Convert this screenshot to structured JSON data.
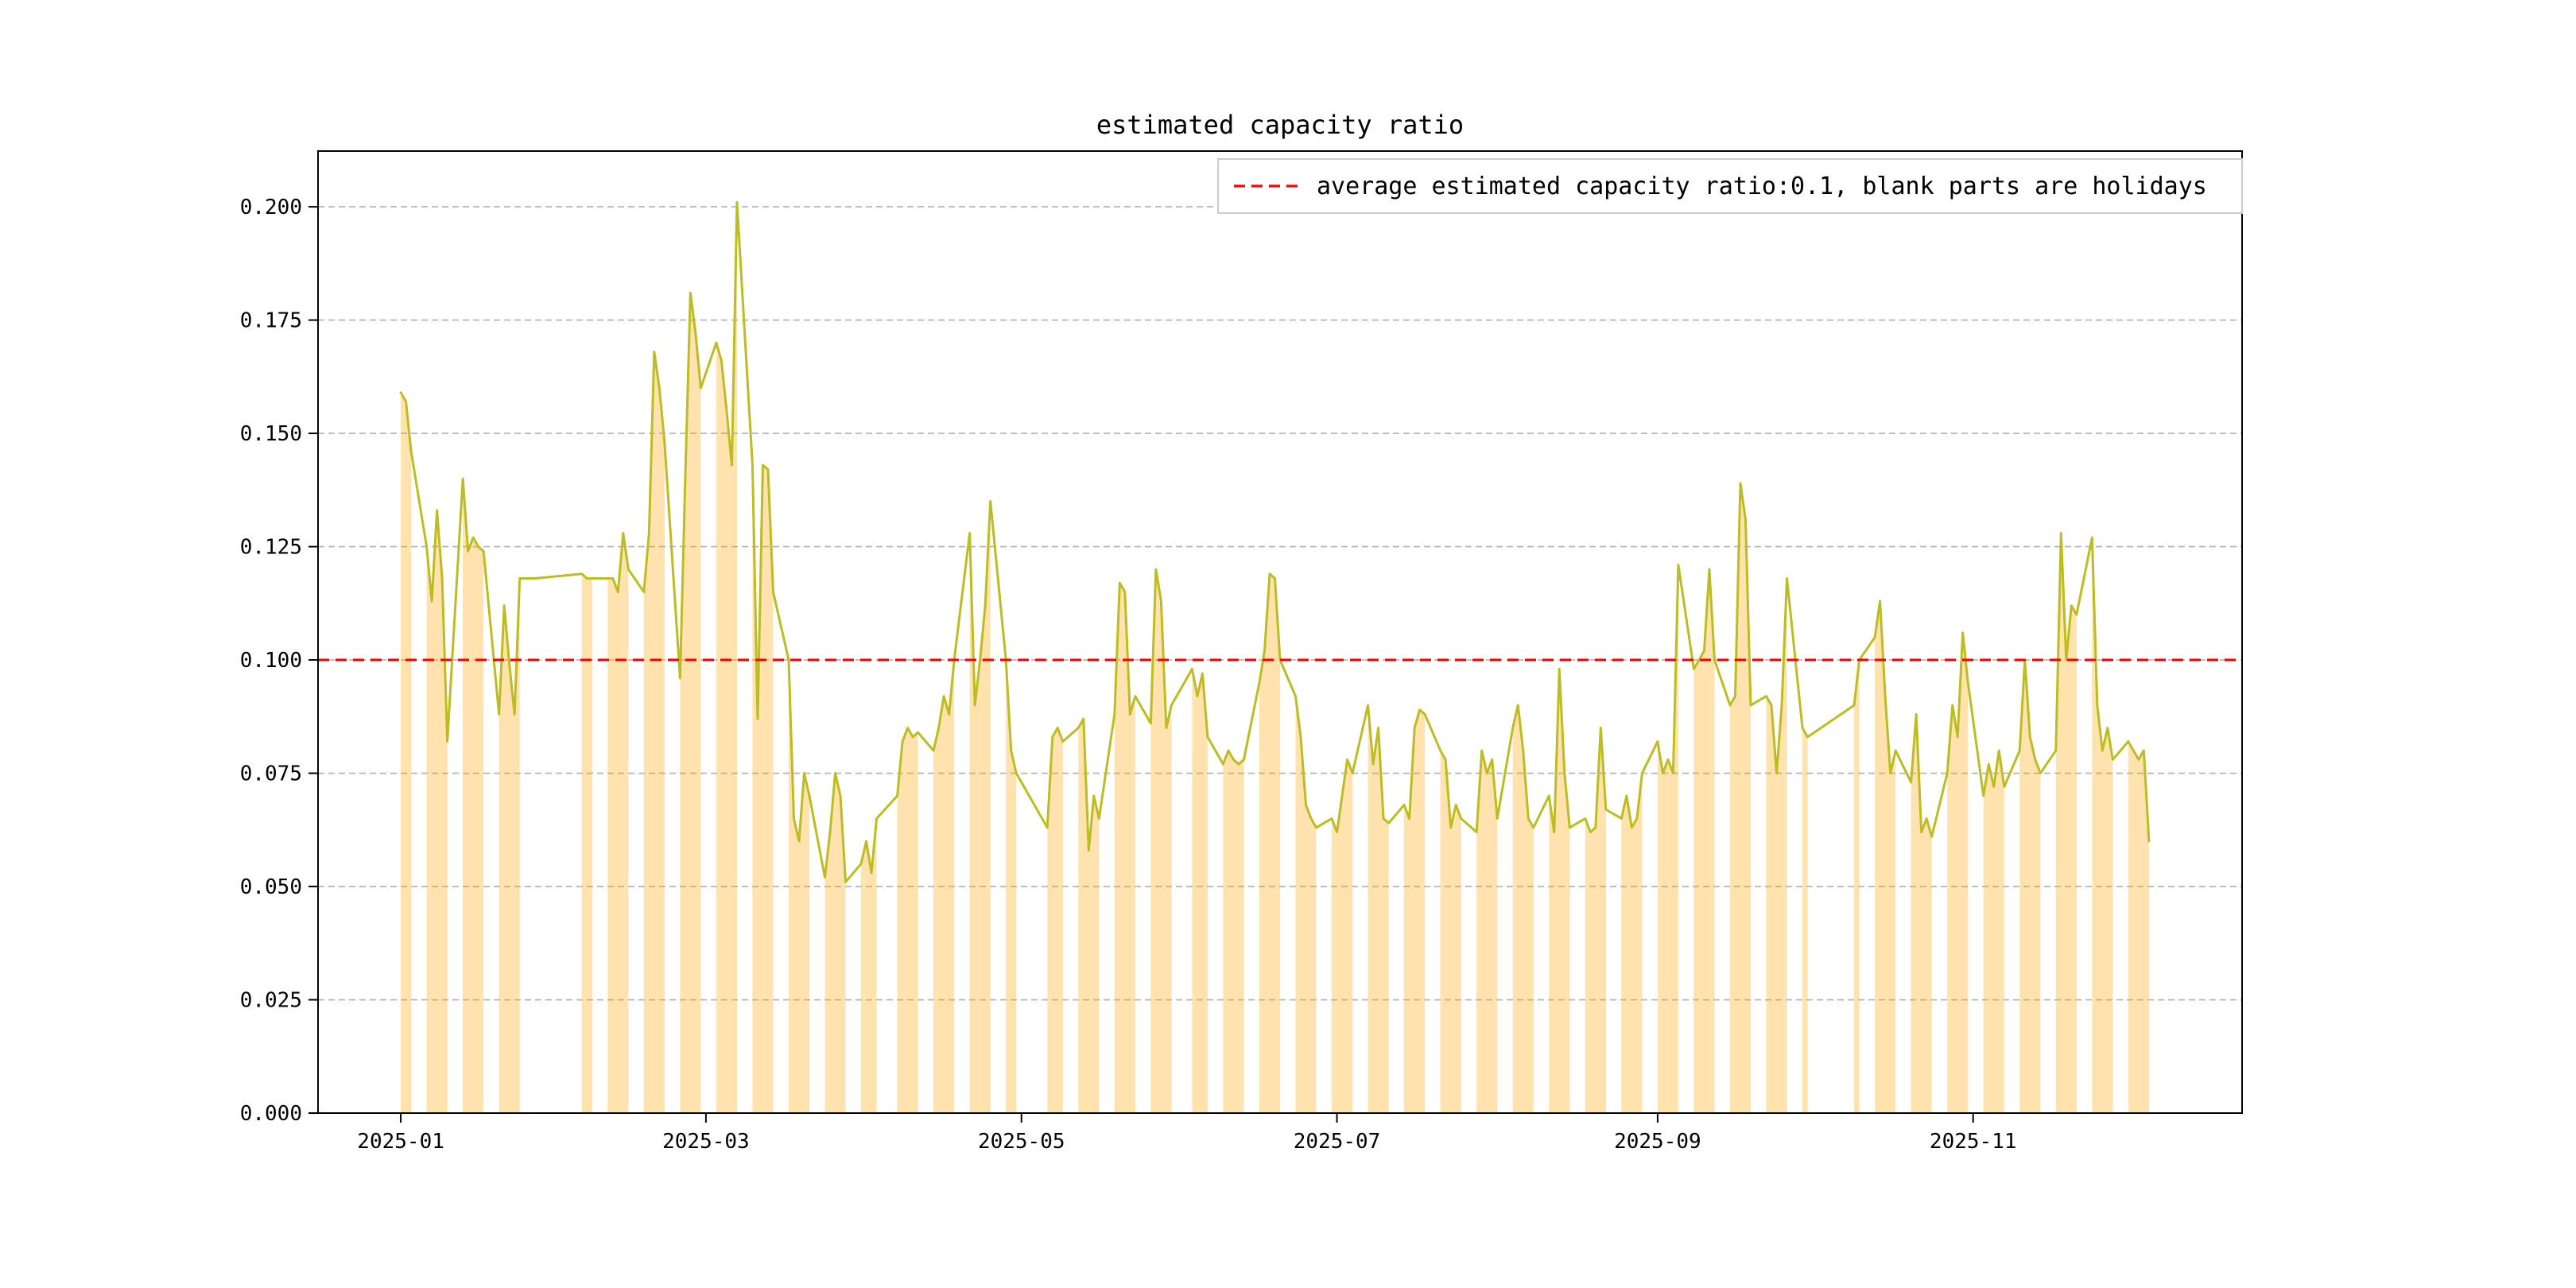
{
  "chart_data": {
    "type": "line",
    "title": "estimated capacity ratio",
    "legend": {
      "label": "average estimated capacity ratio:0.1, blank parts are holidays",
      "position": "upper right"
    },
    "average_line": {
      "value": 0.1,
      "color": "#ff0000",
      "style": "dashed"
    },
    "grid": true,
    "line_color": "#bcbd22",
    "fill_color": "#ffa500",
    "fill_opacity": 0.32,
    "x_unit": "days since 2025-01-01, workdays only (blank gaps are weekends/holidays)",
    "xlim": [
      -16,
      356
    ],
    "ylim": [
      0,
      0.2123
    ],
    "x_ticks": [
      {
        "d": 0,
        "label": "2025-01"
      },
      {
        "d": 59,
        "label": "2025-03"
      },
      {
        "d": 120,
        "label": "2025-05"
      },
      {
        "d": 181,
        "label": "2025-07"
      },
      {
        "d": 243,
        "label": "2025-09"
      },
      {
        "d": 304,
        "label": "2025-11"
      }
    ],
    "y_ticks": [
      {
        "v": 0,
        "label": "0.000"
      },
      {
        "v": 0.025,
        "label": "0.025"
      },
      {
        "v": 0.05,
        "label": "0.050"
      },
      {
        "v": 0.075,
        "label": "0.075"
      },
      {
        "v": 0.1,
        "label": "0.100"
      },
      {
        "v": 0.125,
        "label": "0.125"
      },
      {
        "v": 0.15,
        "label": "0.150"
      },
      {
        "v": 0.175,
        "label": "0.175"
      },
      {
        "v": 0.2,
        "label": "0.200"
      }
    ],
    "points": [
      [
        0,
        0.159
      ],
      [
        1,
        0.157
      ],
      [
        2,
        0.146
      ],
      [
        5,
        0.125
      ],
      [
        6,
        0.113
      ],
      [
        7,
        0.133
      ],
      [
        8,
        0.118
      ],
      [
        9,
        0.082
      ],
      [
        12,
        0.14
      ],
      [
        13,
        0.124
      ],
      [
        14,
        0.127
      ],
      [
        15,
        0.125
      ],
      [
        16,
        0.124
      ],
      [
        19,
        0.088
      ],
      [
        20,
        0.112
      ],
      [
        21,
        0.099
      ],
      [
        22,
        0.088
      ],
      [
        23,
        0.118
      ],
      [
        26,
        0.118
      ],
      [
        35,
        0.119
      ],
      [
        36,
        0.118
      ],
      [
        37,
        0.118
      ],
      [
        40,
        0.118
      ],
      [
        41,
        0.118
      ],
      [
        42,
        0.115
      ],
      [
        43,
        0.128
      ],
      [
        44,
        0.12
      ],
      [
        47,
        0.115
      ],
      [
        48,
        0.128
      ],
      [
        49,
        0.168
      ],
      [
        50,
        0.16
      ],
      [
        51,
        0.148
      ],
      [
        54,
        0.096
      ],
      [
        55,
        0.14
      ],
      [
        56,
        0.181
      ],
      [
        57,
        0.172
      ],
      [
        58,
        0.16
      ],
      [
        61,
        0.17
      ],
      [
        62,
        0.166
      ],
      [
        63,
        0.155
      ],
      [
        64,
        0.143
      ],
      [
        65,
        0.201
      ],
      [
        68,
        0.143
      ],
      [
        69,
        0.087
      ],
      [
        70,
        0.143
      ],
      [
        71,
        0.142
      ],
      [
        72,
        0.115
      ],
      [
        75,
        0.1
      ],
      [
        76,
        0.065
      ],
      [
        77,
        0.06
      ],
      [
        78,
        0.075
      ],
      [
        79,
        0.07
      ],
      [
        82,
        0.052
      ],
      [
        83,
        0.062
      ],
      [
        84,
        0.075
      ],
      [
        85,
        0.07
      ],
      [
        86,
        0.051
      ],
      [
        89,
        0.055
      ],
      [
        90,
        0.06
      ],
      [
        91,
        0.053
      ],
      [
        92,
        0.065
      ],
      [
        96,
        0.07
      ],
      [
        97,
        0.082
      ],
      [
        98,
        0.085
      ],
      [
        99,
        0.083
      ],
      [
        100,
        0.084
      ],
      [
        103,
        0.08
      ],
      [
        104,
        0.085
      ],
      [
        105,
        0.092
      ],
      [
        106,
        0.088
      ],
      [
        107,
        0.1
      ],
      [
        110,
        0.128
      ],
      [
        111,
        0.09
      ],
      [
        112,
        0.1
      ],
      [
        113,
        0.112
      ],
      [
        114,
        0.135
      ],
      [
        117,
        0.1
      ],
      [
        118,
        0.08
      ],
      [
        119,
        0.075
      ],
      [
        125,
        0.063
      ],
      [
        126,
        0.083
      ],
      [
        127,
        0.085
      ],
      [
        128,
        0.082
      ],
      [
        131,
        0.085
      ],
      [
        132,
        0.087
      ],
      [
        133,
        0.058
      ],
      [
        134,
        0.07
      ],
      [
        135,
        0.065
      ],
      [
        138,
        0.088
      ],
      [
        139,
        0.117
      ],
      [
        140,
        0.115
      ],
      [
        141,
        0.088
      ],
      [
        142,
        0.092
      ],
      [
        145,
        0.086
      ],
      [
        146,
        0.12
      ],
      [
        147,
        0.113
      ],
      [
        148,
        0.085
      ],
      [
        149,
        0.09
      ],
      [
        153,
        0.098
      ],
      [
        154,
        0.092
      ],
      [
        155,
        0.097
      ],
      [
        156,
        0.083
      ],
      [
        159,
        0.077
      ],
      [
        160,
        0.08
      ],
      [
        161,
        0.078
      ],
      [
        162,
        0.077
      ],
      [
        163,
        0.078
      ],
      [
        166,
        0.095
      ],
      [
        167,
        0.102
      ],
      [
        168,
        0.119
      ],
      [
        169,
        0.118
      ],
      [
        170,
        0.1
      ],
      [
        173,
        0.092
      ],
      [
        174,
        0.083
      ],
      [
        175,
        0.068
      ],
      [
        176,
        0.065
      ],
      [
        177,
        0.063
      ],
      [
        180,
        0.065
      ],
      [
        181,
        0.062
      ],
      [
        182,
        0.07
      ],
      [
        183,
        0.078
      ],
      [
        184,
        0.075
      ],
      [
        187,
        0.09
      ],
      [
        188,
        0.077
      ],
      [
        189,
        0.085
      ],
      [
        190,
        0.065
      ],
      [
        191,
        0.064
      ],
      [
        194,
        0.068
      ],
      [
        195,
        0.065
      ],
      [
        196,
        0.085
      ],
      [
        197,
        0.089
      ],
      [
        198,
        0.088
      ],
      [
        201,
        0.08
      ],
      [
        202,
        0.078
      ],
      [
        203,
        0.063
      ],
      [
        204,
        0.068
      ],
      [
        205,
        0.065
      ],
      [
        208,
        0.062
      ],
      [
        209,
        0.08
      ],
      [
        210,
        0.075
      ],
      [
        211,
        0.078
      ],
      [
        212,
        0.065
      ],
      [
        215,
        0.085
      ],
      [
        216,
        0.09
      ],
      [
        217,
        0.08
      ],
      [
        218,
        0.065
      ],
      [
        219,
        0.063
      ],
      [
        222,
        0.07
      ],
      [
        223,
        0.062
      ],
      [
        224,
        0.098
      ],
      [
        225,
        0.075
      ],
      [
        226,
        0.063
      ],
      [
        229,
        0.065
      ],
      [
        230,
        0.062
      ],
      [
        231,
        0.063
      ],
      [
        232,
        0.085
      ],
      [
        233,
        0.067
      ],
      [
        236,
        0.065
      ],
      [
        237,
        0.07
      ],
      [
        238,
        0.063
      ],
      [
        239,
        0.065
      ],
      [
        240,
        0.075
      ],
      [
        243,
        0.082
      ],
      [
        244,
        0.075
      ],
      [
        245,
        0.078
      ],
      [
        246,
        0.075
      ],
      [
        247,
        0.121
      ],
      [
        250,
        0.098
      ],
      [
        251,
        0.1
      ],
      [
        252,
        0.102
      ],
      [
        253,
        0.12
      ],
      [
        254,
        0.1
      ],
      [
        257,
        0.09
      ],
      [
        258,
        0.092
      ],
      [
        259,
        0.139
      ],
      [
        260,
        0.131
      ],
      [
        261,
        0.09
      ],
      [
        264,
        0.092
      ],
      [
        265,
        0.09
      ],
      [
        266,
        0.075
      ],
      [
        267,
        0.09
      ],
      [
        268,
        0.118
      ],
      [
        271,
        0.085
      ],
      [
        272,
        0.083
      ],
      [
        281,
        0.09
      ],
      [
        282,
        0.1
      ],
      [
        285,
        0.105
      ],
      [
        286,
        0.113
      ],
      [
        287,
        0.092
      ],
      [
        288,
        0.075
      ],
      [
        289,
        0.08
      ],
      [
        292,
        0.073
      ],
      [
        293,
        0.088
      ],
      [
        294,
        0.062
      ],
      [
        295,
        0.065
      ],
      [
        296,
        0.061
      ],
      [
        299,
        0.075
      ],
      [
        300,
        0.09
      ],
      [
        301,
        0.083
      ],
      [
        302,
        0.106
      ],
      [
        303,
        0.095
      ],
      [
        306,
        0.07
      ],
      [
        307,
        0.077
      ],
      [
        308,
        0.072
      ],
      [
        309,
        0.08
      ],
      [
        310,
        0.072
      ],
      [
        313,
        0.08
      ],
      [
        314,
        0.1
      ],
      [
        315,
        0.083
      ],
      [
        316,
        0.078
      ],
      [
        317,
        0.075
      ],
      [
        320,
        0.08
      ],
      [
        321,
        0.128
      ],
      [
        322,
        0.1
      ],
      [
        323,
        0.112
      ],
      [
        324,
        0.11
      ],
      [
        327,
        0.127
      ],
      [
        328,
        0.09
      ],
      [
        329,
        0.08
      ],
      [
        330,
        0.085
      ],
      [
        331,
        0.078
      ],
      [
        334,
        0.082
      ],
      [
        335,
        0.08
      ],
      [
        336,
        0.078
      ],
      [
        337,
        0.08
      ],
      [
        338,
        0.06
      ]
    ]
  }
}
